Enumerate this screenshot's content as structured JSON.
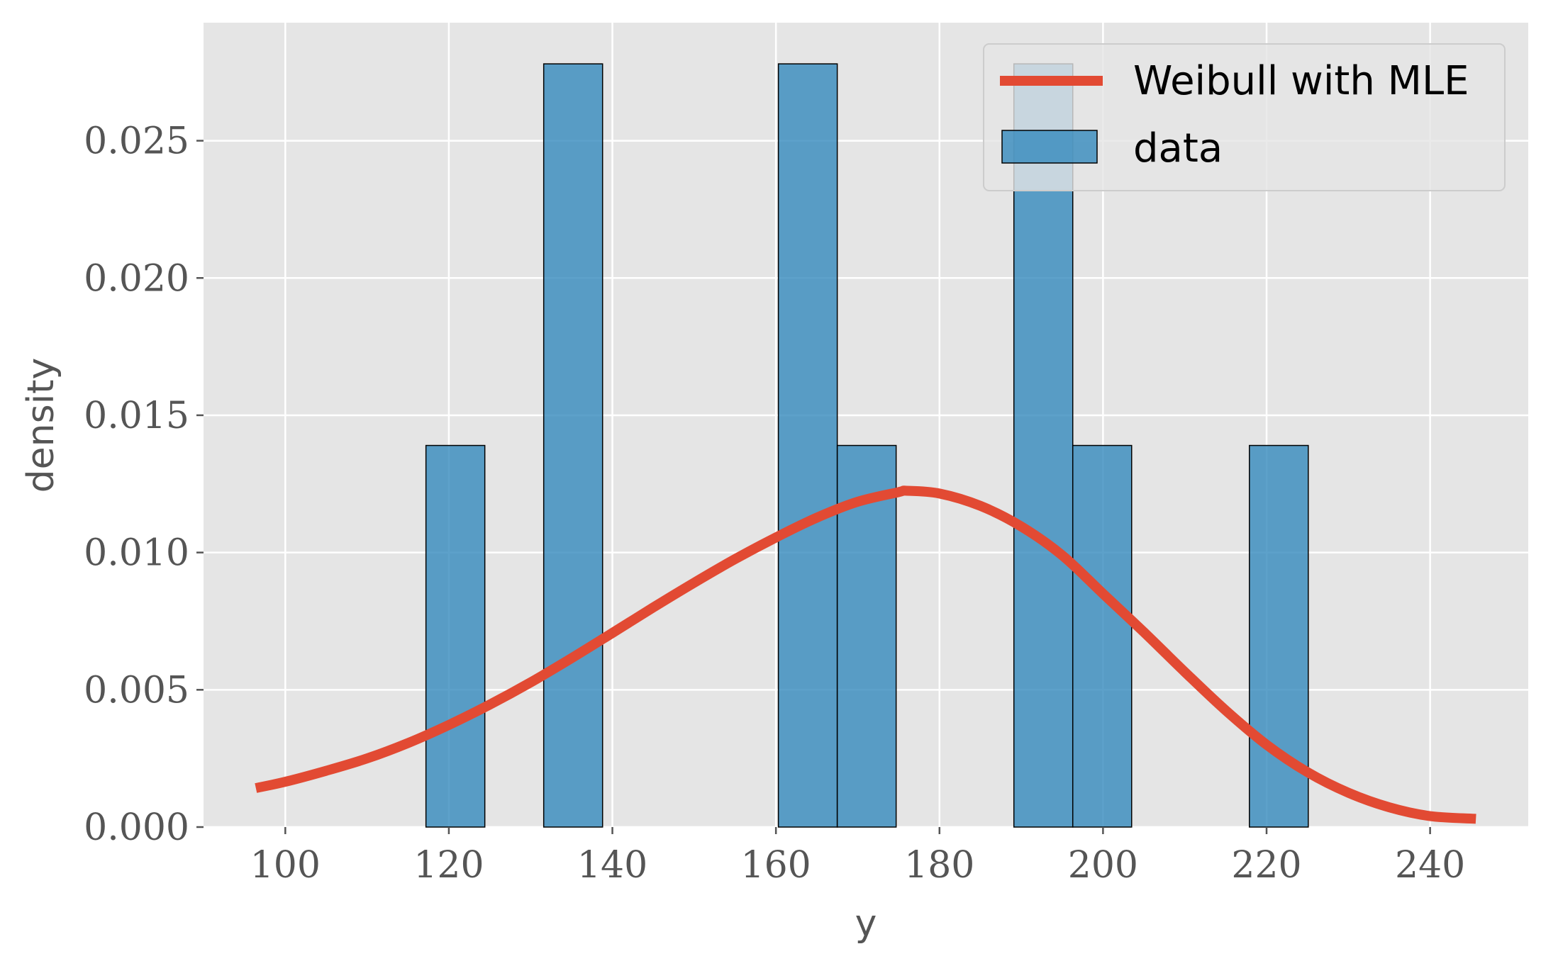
{
  "chart_data": {
    "type": "bar",
    "xlabel": "y",
    "ylabel": "density",
    "xlim": [
      90,
      252
    ],
    "ylim": [
      0,
      0.0293
    ],
    "x_ticks": [
      100,
      120,
      140,
      160,
      180,
      200,
      220,
      240
    ],
    "y_ticks": [
      0,
      0.005,
      0.01,
      0.015,
      0.02,
      0.025
    ],
    "x_tick_labels": [
      "100",
      "120",
      "140",
      "160",
      "180",
      "200",
      "220",
      "240"
    ],
    "y_tick_labels": [
      "0.000",
      "0.005",
      "0.010",
      "0.015",
      "0.020",
      "0.025"
    ],
    "grid": true,
    "legend_position": "top-right",
    "histogram": {
      "name": "data",
      "color": "#348ABD",
      "edge_color": "#000000",
      "bins": [
        {
          "x0": 117.2,
          "x1": 124.4,
          "density": 0.0139
        },
        {
          "x0": 131.6,
          "x1": 138.8,
          "density": 0.0278
        },
        {
          "x0": 160.3,
          "x1": 167.5,
          "density": 0.0278
        },
        {
          "x0": 167.5,
          "x1": 174.7,
          "density": 0.0139
        },
        {
          "x0": 189.1,
          "x1": 196.3,
          "density": 0.0278
        },
        {
          "x0": 196.3,
          "x1": 203.5,
          "density": 0.0139
        },
        {
          "x0": 217.9,
          "x1": 225.1,
          "density": 0.0139
        }
      ]
    },
    "curve": {
      "name": "Weibull with MLE",
      "color": "#E24A33",
      "x": [
        96.4,
        100,
        105,
        110,
        115,
        120,
        125,
        130,
        135,
        140,
        145,
        150,
        155,
        160,
        165,
        170,
        175,
        176,
        180,
        185,
        190,
        195,
        200,
        205,
        210,
        215,
        220,
        225,
        230,
        235,
        240,
        245.6
      ],
      "y": [
        0.00142,
        0.00165,
        0.00205,
        0.0025,
        0.00306,
        0.00372,
        0.00446,
        0.00527,
        0.00615,
        0.00707,
        0.008,
        0.0089,
        0.00976,
        0.01055,
        0.01127,
        0.01185,
        0.0122,
        0.01225,
        0.01215,
        0.0117,
        0.01095,
        0.0099,
        0.0085,
        0.0071,
        0.00565,
        0.00425,
        0.003,
        0.002,
        0.00125,
        0.00072,
        0.0004,
        0.0003
      ]
    }
  }
}
